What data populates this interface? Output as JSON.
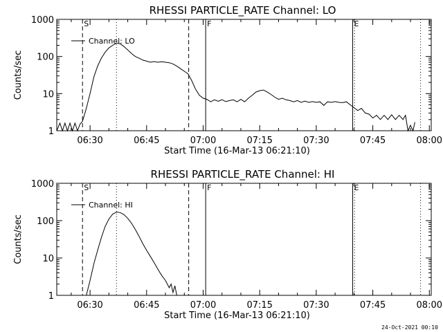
{
  "footer": {
    "timestamp": "24-Oct-2021 00:10"
  },
  "chart_data": [
    {
      "type": "line",
      "title": "RHESSI PARTICLE_RATE Channel: LO",
      "xlabel": "Start Time (16-Mar-13 06:21:10)",
      "ylabel": "Counts/sec",
      "y_scale": "log",
      "ylim": [
        1,
        1000
      ],
      "xlim": [
        "06:21:10",
        "08:00:30"
      ],
      "x_ticks": [
        "06:30",
        "06:45",
        "07:00",
        "07:15",
        "07:30",
        "07:45",
        "08:00"
      ],
      "y_ticks": [
        "1",
        "10",
        "100",
        "1000"
      ],
      "legend": {
        "position": "top-left",
        "label": "Channel: LO"
      },
      "markers": [
        {
          "label": "S",
          "time": "06:28:00",
          "style": "dashed"
        },
        {
          "label": "",
          "time": "06:37:00",
          "style": "dotted"
        },
        {
          "label": "",
          "time": "06:56:10",
          "style": "dashed"
        },
        {
          "label": "F",
          "time": "07:00:40",
          "style": "solid"
        },
        {
          "label": "E",
          "time": "07:39:40",
          "style": "solid"
        },
        {
          "label": "",
          "time": "07:40:10",
          "style": "dotted"
        },
        {
          "label": "",
          "time": "07:57:40",
          "style": "dotted"
        }
      ],
      "series": [
        {
          "name": "Channel: LO",
          "points": [
            [
              "06:21:10",
              1
            ],
            [
              "06:22:00",
              1.6
            ],
            [
              "06:22:40",
              1
            ],
            [
              "06:23:20",
              1.6
            ],
            [
              "06:24:00",
              1
            ],
            [
              "06:24:40",
              1.6
            ],
            [
              "06:25:20",
              1
            ],
            [
              "06:26:00",
              1.6
            ],
            [
              "06:26:40",
              1
            ],
            [
              "06:27:20",
              1.5
            ],
            [
              "06:28:00",
              1.8
            ],
            [
              "06:29:00",
              4
            ],
            [
              "06:30:00",
              10
            ],
            [
              "06:31:00",
              28
            ],
            [
              "06:32:00",
              55
            ],
            [
              "06:33:00",
              90
            ],
            [
              "06:34:00",
              130
            ],
            [
              "06:35:00",
              170
            ],
            [
              "06:36:00",
              200
            ],
            [
              "06:37:00",
              230
            ],
            [
              "06:38:00",
              220
            ],
            [
              "06:39:00",
              185
            ],
            [
              "06:40:00",
              150
            ],
            [
              "06:41:00",
              120
            ],
            [
              "06:42:00",
              100
            ],
            [
              "06:43:00",
              90
            ],
            [
              "06:44:00",
              80
            ],
            [
              "06:45:00",
              75
            ],
            [
              "06:46:00",
              70
            ],
            [
              "06:47:00",
              73
            ],
            [
              "06:48:00",
              70
            ],
            [
              "06:49:00",
              72
            ],
            [
              "06:50:00",
              70
            ],
            [
              "06:51:00",
              68
            ],
            [
              "06:52:00",
              63
            ],
            [
              "06:53:00",
              55
            ],
            [
              "06:54:00",
              47
            ],
            [
              "06:55:00",
              40
            ],
            [
              "06:56:00",
              34
            ],
            [
              "06:57:00",
              22
            ],
            [
              "06:58:00",
              13
            ],
            [
              "06:59:00",
              9
            ],
            [
              "07:00:00",
              7.5
            ],
            [
              "07:01:00",
              7
            ],
            [
              "07:02:00",
              6
            ],
            [
              "07:03:00",
              6.8
            ],
            [
              "07:04:00",
              6.2
            ],
            [
              "07:05:00",
              6.9
            ],
            [
              "07:06:00",
              6.1
            ],
            [
              "07:07:00",
              6.5
            ],
            [
              "07:08:00",
              6.8
            ],
            [
              "07:09:00",
              6
            ],
            [
              "07:10:00",
              7
            ],
            [
              "07:11:00",
              6
            ],
            [
              "07:12:00",
              7.5
            ],
            [
              "07:13:00",
              9
            ],
            [
              "07:14:00",
              11
            ],
            [
              "07:15:00",
              12
            ],
            [
              "07:16:00",
              12.5
            ],
            [
              "07:17:00",
              11
            ],
            [
              "07:18:00",
              9.5
            ],
            [
              "07:19:00",
              8
            ],
            [
              "07:20:00",
              7
            ],
            [
              "07:21:00",
              7.5
            ],
            [
              "07:22:00",
              6.8
            ],
            [
              "07:23:00",
              6.5
            ],
            [
              "07:24:00",
              6
            ],
            [
              "07:25:00",
              6.5
            ],
            [
              "07:26:00",
              5.8
            ],
            [
              "07:27:00",
              6.3
            ],
            [
              "07:28:00",
              5.8
            ],
            [
              "07:29:00",
              6.1
            ],
            [
              "07:30:00",
              5.8
            ],
            [
              "07:31:00",
              6
            ],
            [
              "07:32:00",
              4.8
            ],
            [
              "07:33:00",
              6
            ],
            [
              "07:34:00",
              5.8
            ],
            [
              "07:35:00",
              6.1
            ],
            [
              "07:36:00",
              5.8
            ],
            [
              "07:37:00",
              5.7
            ],
            [
              "07:38:00",
              6
            ],
            [
              "07:39:00",
              5
            ],
            [
              "07:40:00",
              4.2
            ],
            [
              "07:41:00",
              3.5
            ],
            [
              "07:42:00",
              4
            ],
            [
              "07:43:00",
              3
            ],
            [
              "07:44:00",
              2.8
            ],
            [
              "07:45:00",
              2.2
            ],
            [
              "07:46:00",
              2.6
            ],
            [
              "07:47:00",
              2
            ],
            [
              "07:48:00",
              2.6
            ],
            [
              "07:49:00",
              2
            ],
            [
              "07:50:00",
              2.7
            ],
            [
              "07:51:00",
              2
            ],
            [
              "07:52:00",
              2.6
            ],
            [
              "07:53:00",
              2
            ],
            [
              "07:53:40",
              2.6
            ],
            [
              "07:54:20",
              1
            ],
            [
              "07:55:00",
              1.4
            ],
            [
              "07:55:40",
              1
            ],
            [
              "07:56:10",
              1.7
            ]
          ]
        }
      ]
    },
    {
      "type": "line",
      "title": "RHESSI PARTICLE_RATE Channel: HI",
      "xlabel": "Start Time (16-Mar-13 06:21:10)",
      "ylabel": "Counts/sec",
      "y_scale": "log",
      "ylim": [
        1,
        1000
      ],
      "xlim": [
        "06:21:10",
        "08:00:30"
      ],
      "x_ticks": [
        "06:30",
        "06:45",
        "07:00",
        "07:15",
        "07:30",
        "07:45",
        "08:00"
      ],
      "y_ticks": [
        "1",
        "10",
        "100",
        "1000"
      ],
      "legend": {
        "position": "top-left",
        "label": "Channel: HI"
      },
      "markers": [
        {
          "label": "S",
          "time": "06:28:00",
          "style": "dashed"
        },
        {
          "label": "",
          "time": "06:37:00",
          "style": "dotted"
        },
        {
          "label": "",
          "time": "06:56:10",
          "style": "dashed"
        },
        {
          "label": "F",
          "time": "07:00:40",
          "style": "solid"
        },
        {
          "label": "E",
          "time": "07:39:40",
          "style": "solid"
        },
        {
          "label": "",
          "time": "07:40:10",
          "style": "dotted"
        },
        {
          "label": "",
          "time": "07:57:40",
          "style": "dotted"
        }
      ],
      "series": [
        {
          "name": "Channel: HI",
          "points": [
            [
              "06:29:00",
              1
            ],
            [
              "06:30:00",
              2.5
            ],
            [
              "06:31:00",
              7
            ],
            [
              "06:32:00",
              16
            ],
            [
              "06:33:00",
              35
            ],
            [
              "06:34:00",
              70
            ],
            [
              "06:35:00",
              110
            ],
            [
              "06:36:00",
              150
            ],
            [
              "06:37:00",
              170
            ],
            [
              "06:38:00",
              165
            ],
            [
              "06:39:00",
              145
            ],
            [
              "06:40:00",
              115
            ],
            [
              "06:41:00",
              85
            ],
            [
              "06:42:00",
              58
            ],
            [
              "06:43:00",
              38
            ],
            [
              "06:44:00",
              24
            ],
            [
              "06:45:00",
              16
            ],
            [
              "06:46:00",
              11
            ],
            [
              "06:47:00",
              7.5
            ],
            [
              "06:48:00",
              5
            ],
            [
              "06:49:00",
              3.4
            ],
            [
              "06:50:00",
              2.5
            ],
            [
              "06:51:00",
              1.6
            ],
            [
              "06:51:30",
              2
            ],
            [
              "06:52:00",
              1.2
            ],
            [
              "06:52:30",
              1.8
            ],
            [
              "06:53:00",
              1
            ]
          ]
        }
      ]
    }
  ]
}
